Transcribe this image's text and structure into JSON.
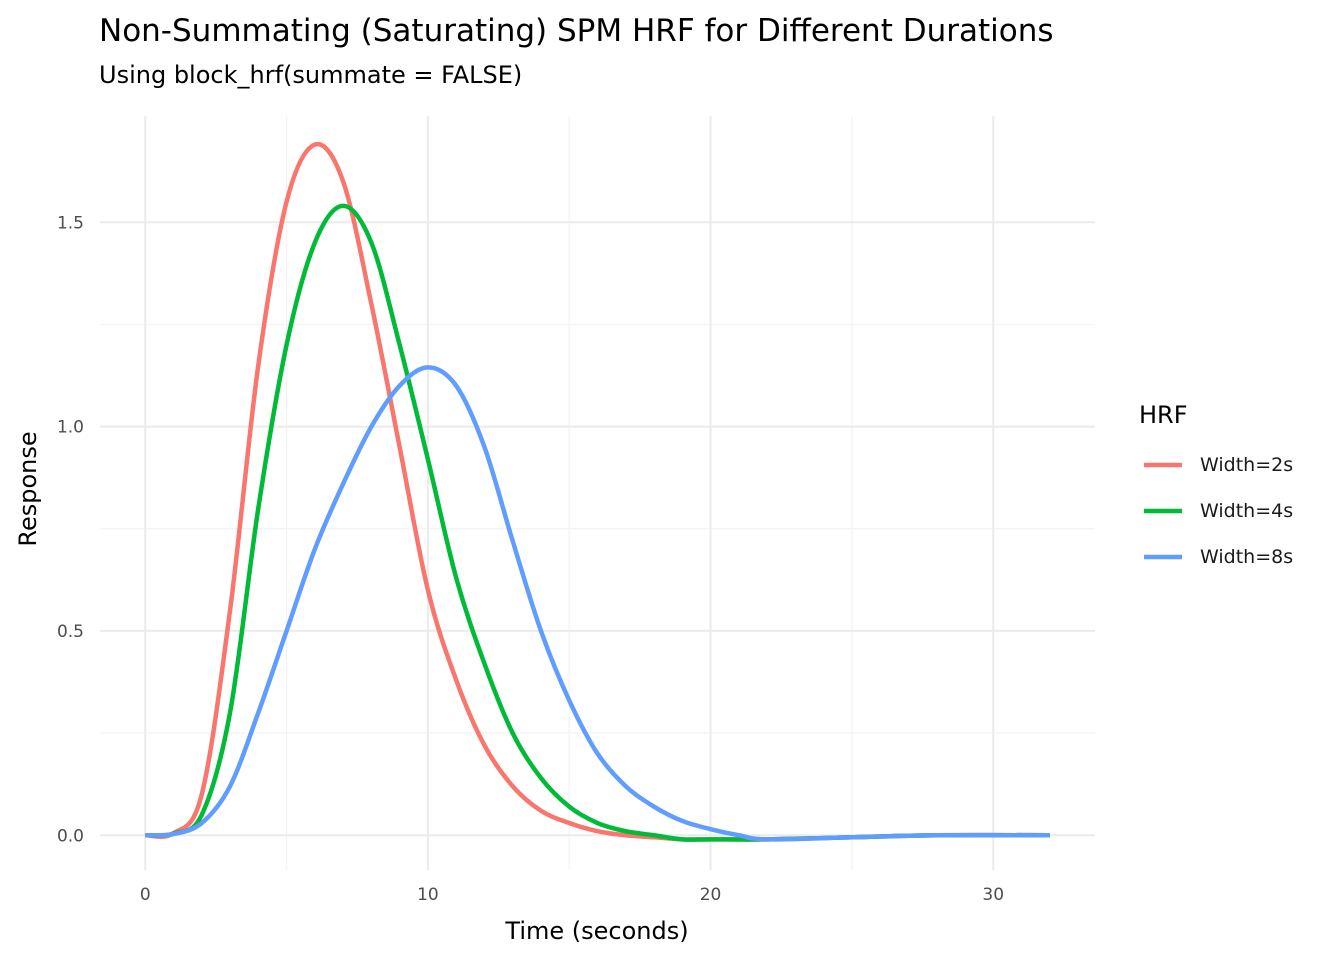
{
  "chart_data": {
    "type": "line",
    "title": "Non-Summating (Saturating) SPM HRF for Different Durations",
    "subtitle": "Using block_hrf(summate = FALSE)",
    "xlabel": "Time (seconds)",
    "ylabel": "Response",
    "xlim": [
      -1.6,
      33.6
    ],
    "ylim": [
      -0.085,
      1.76
    ],
    "x_ticks": [
      0,
      10,
      20,
      30
    ],
    "x_tick_labels": [
      "0",
      "10",
      "20",
      "30"
    ],
    "y_ticks": [
      0,
      0.5,
      1.0,
      1.5
    ],
    "y_tick_labels": [
      "0.0",
      "0.5",
      "1.0",
      "1.5"
    ],
    "grid": true,
    "legend": {
      "title": "HRF",
      "placement": "right"
    },
    "series": [
      {
        "name": "Width=2s",
        "color": "#F8766D",
        "x": [
          0,
          1,
          2,
          3,
          4,
          5,
          6,
          7,
          8,
          9,
          10,
          11,
          12,
          13,
          14,
          15,
          16,
          17,
          18,
          19,
          20,
          22,
          25,
          28,
          32
        ],
        "y": [
          0,
          0.005,
          0.1,
          0.55,
          1.15,
          1.55,
          1.69,
          1.6,
          1.3,
          0.95,
          0.6,
          0.38,
          0.22,
          0.12,
          0.06,
          0.03,
          0.01,
          0.0,
          -0.005,
          -0.01,
          -0.01,
          -0.01,
          -0.005,
          0,
          0
        ]
      },
      {
        "name": "Width=4s",
        "color": "#00BA38",
        "x": [
          0,
          1,
          2,
          3,
          4,
          5,
          6,
          7,
          8,
          9,
          10,
          11,
          12,
          13,
          14,
          15,
          16,
          17,
          18,
          19,
          20,
          22,
          25,
          28,
          32
        ],
        "y": [
          0,
          0.004,
          0.05,
          0.3,
          0.8,
          1.2,
          1.45,
          1.54,
          1.45,
          1.2,
          0.92,
          0.63,
          0.42,
          0.25,
          0.14,
          0.07,
          0.03,
          0.01,
          0,
          -0.01,
          -0.01,
          -0.01,
          -0.005,
          0,
          0
        ]
      },
      {
        "name": "Width=8s",
        "color": "#619CFF",
        "x": [
          0,
          1,
          2,
          3,
          4,
          5,
          6,
          7,
          8,
          9,
          10,
          11,
          12,
          13,
          14,
          15,
          16,
          17,
          18,
          19,
          20,
          21,
          22,
          25,
          28,
          32
        ],
        "y": [
          0,
          0.003,
          0.03,
          0.12,
          0.3,
          0.5,
          0.7,
          0.86,
          1.0,
          1.1,
          1.145,
          1.1,
          0.95,
          0.72,
          0.5,
          0.33,
          0.2,
          0.12,
          0.07,
          0.035,
          0.015,
          0.0,
          -0.01,
          -0.005,
          0,
          0
        ]
      }
    ]
  }
}
